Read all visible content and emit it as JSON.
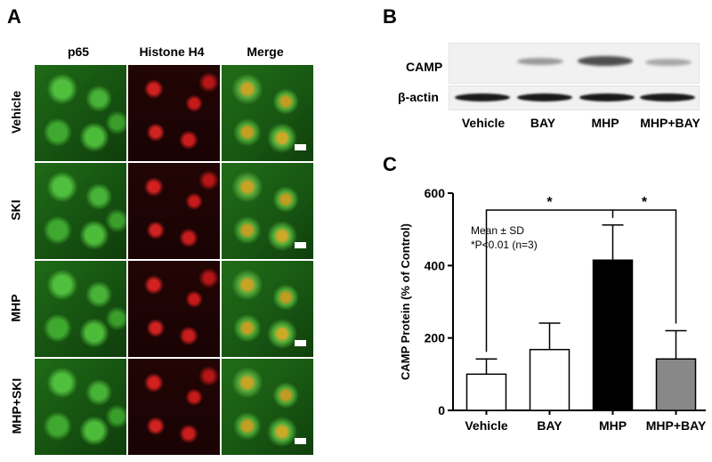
{
  "panel_a": {
    "letter": "A",
    "columns": [
      "p65",
      "Histone H4",
      "Merge"
    ],
    "rows": [
      "Vehicle",
      "SKI",
      "MHP",
      "MHP+SKI"
    ]
  },
  "panel_b": {
    "letter": "B",
    "rows": [
      "CAMP",
      "β-actin"
    ],
    "lanes": [
      "Vehicle",
      "BAY",
      "MHP",
      "MHP+BAY"
    ]
  },
  "chart_data": {
    "panel_letter": "C",
    "type": "bar",
    "categories": [
      "Vehicle",
      "BAY",
      "MHP",
      "MHP+BAY"
    ],
    "values": [
      100,
      168,
      415,
      142
    ],
    "errors": [
      42,
      73,
      97,
      78
    ],
    "bar_colors": [
      "#ffffff",
      "#ffffff",
      "#000000",
      "#888888"
    ],
    "ylabel": "CAMP Protein (% of Control)",
    "ylim": [
      0,
      600
    ],
    "yticks": [
      0,
      200,
      400,
      600
    ],
    "legend_text": [
      "Mean ± SD",
      "*P<0.01 (n=3)"
    ],
    "significance": [
      {
        "from": "Vehicle",
        "to": "MHP",
        "label": "*"
      },
      {
        "from": "MHP",
        "to": "MHP+BAY",
        "label": "*"
      }
    ]
  }
}
